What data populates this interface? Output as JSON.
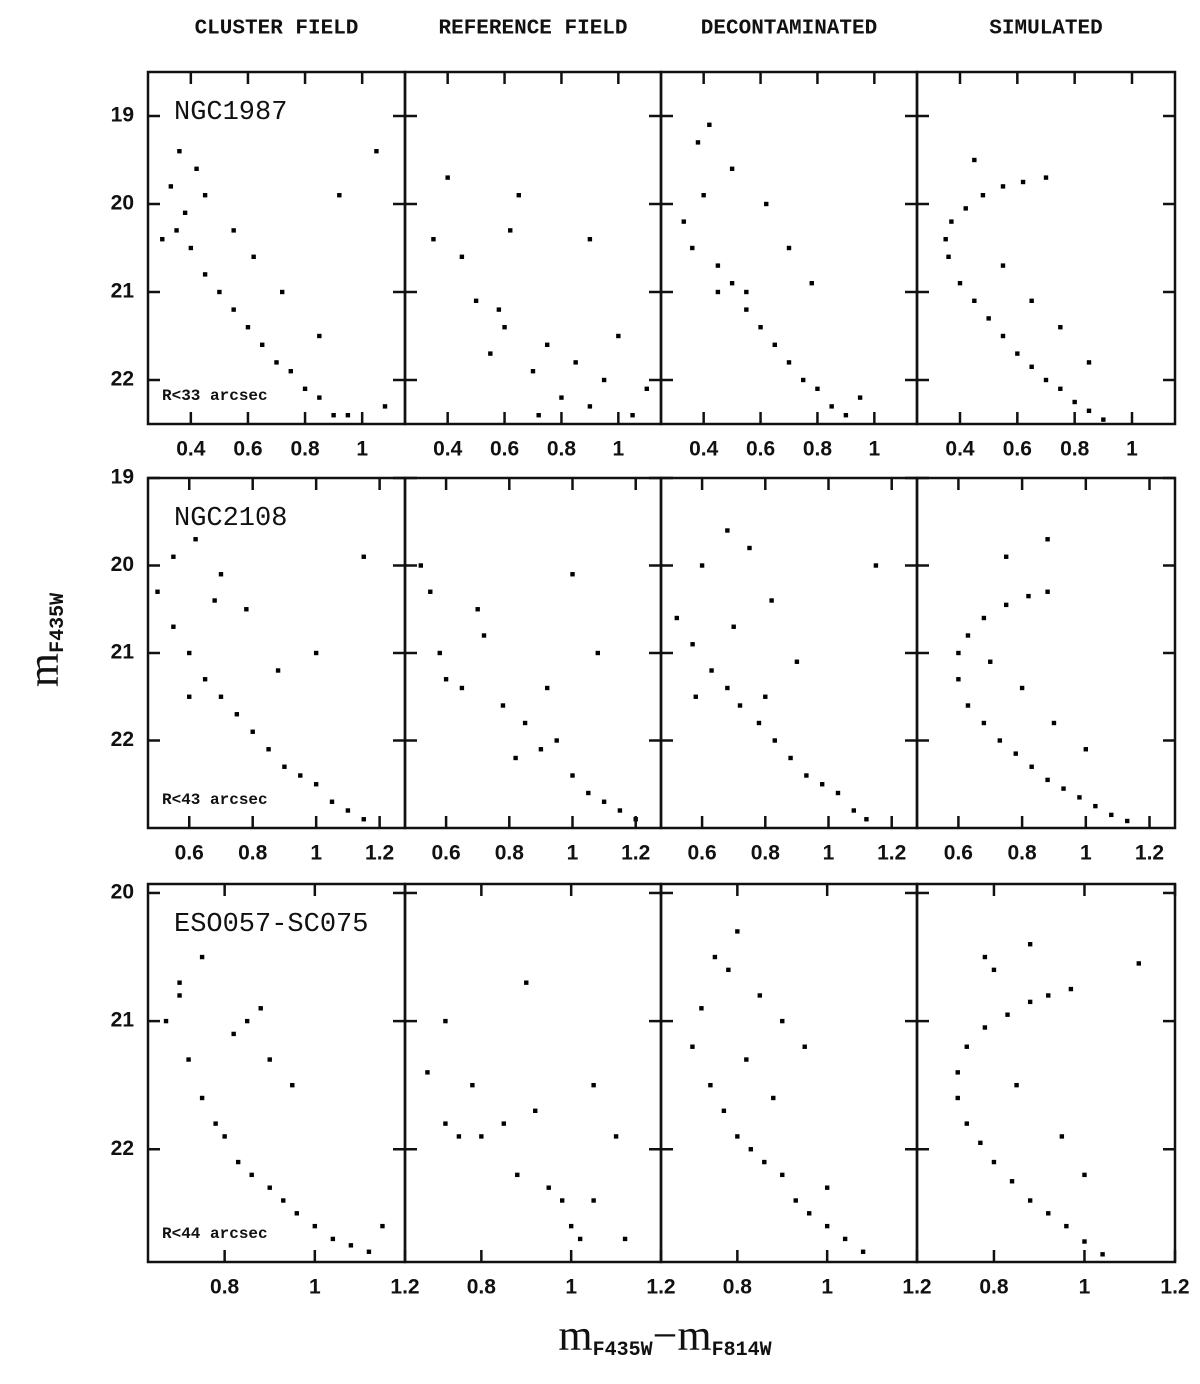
{
  "column_titles": [
    "CLUSTER FIELD",
    "REFERENCE FIELD",
    "DECONTAMINATED",
    "SIMULATED"
  ],
  "ylabel": [
    "m",
    "F435W"
  ],
  "xlabel": [
    "m",
    "F435W",
    "−m",
    "F814W"
  ],
  "chart_data": [
    {
      "type": "scatter",
      "name": "NGC1987",
      "radius": "R<33 arcsec",
      "ytick_labels": true,
      "color": "#000000",
      "xlim": [
        0.25,
        1.15
      ],
      "ylim": [
        22.5,
        18.5
      ],
      "xticks": [
        0.4,
        0.6,
        0.8,
        1
      ],
      "yticks": [
        19,
        20,
        21,
        22
      ],
      "x": [
        0.33,
        0.35,
        0.38,
        0.4,
        0.42,
        0.45,
        0.5,
        0.55,
        0.6,
        0.65,
        0.7,
        0.75,
        0.8,
        0.85,
        0.9,
        0.95,
        0.36,
        0.45,
        0.55,
        0.62,
        0.72,
        0.85,
        1.05,
        0.92,
        1.08,
        0.3
      ],
      "y": [
        19.8,
        20.3,
        20.1,
        20.5,
        19.6,
        20.8,
        21.0,
        21.2,
        21.4,
        21.6,
        21.8,
        21.9,
        22.1,
        22.2,
        22.4,
        22.4,
        19.4,
        19.9,
        20.3,
        20.6,
        21.0,
        21.5,
        19.4,
        19.9,
        22.3,
        20.4
      ]
    },
    {
      "type": "scatter",
      "ytick_labels": false,
      "color": "#000000",
      "xlim": [
        0.25,
        1.15
      ],
      "ylim": [
        22.5,
        18.5
      ],
      "xticks": [
        0.4,
        0.6,
        0.8,
        1
      ],
      "yticks": [
        19,
        20,
        21,
        22
      ],
      "x": [
        0.35,
        0.45,
        0.5,
        0.55,
        0.6,
        0.65,
        0.7,
        0.75,
        0.8,
        0.85,
        0.9,
        0.95,
        1.0,
        1.05,
        0.62,
        0.4,
        0.9,
        0.72,
        1.1,
        0.58
      ],
      "y": [
        20.4,
        20.6,
        21.1,
        21.7,
        21.4,
        19.9,
        21.9,
        21.6,
        22.2,
        21.8,
        22.3,
        22.0,
        21.5,
        22.4,
        20.3,
        19.7,
        20.4,
        22.4,
        22.1,
        21.2
      ]
    },
    {
      "type": "scatter",
      "ytick_labels": false,
      "color": "#000000",
      "xlim": [
        0.25,
        1.15
      ],
      "ylim": [
        22.5,
        18.5
      ],
      "xticks": [
        0.4,
        0.6,
        0.8,
        1
      ],
      "yticks": [
        19,
        20,
        21,
        22
      ],
      "x": [
        0.33,
        0.36,
        0.4,
        0.38,
        0.45,
        0.5,
        0.55,
        0.6,
        0.65,
        0.7,
        0.75,
        0.8,
        0.85,
        0.9,
        0.42,
        0.5,
        0.62,
        0.7,
        0.78,
        0.95,
        0.55,
        0.45
      ],
      "y": [
        20.2,
        20.5,
        19.9,
        19.3,
        20.7,
        20.9,
        21.2,
        21.4,
        21.6,
        21.8,
        22.0,
        22.1,
        22.3,
        22.4,
        19.1,
        19.6,
        20.0,
        20.5,
        20.9,
        22.2,
        21.0,
        21.0
      ]
    },
    {
      "type": "scatter",
      "ytick_labels": false,
      "color": "#000000",
      "xlim": [
        0.25,
        1.15
      ],
      "ylim": [
        22.5,
        18.5
      ],
      "xticks": [
        0.4,
        0.6,
        0.8,
        1
      ],
      "yticks": [
        19,
        20,
        21,
        22
      ],
      "x": [
        0.7,
        0.62,
        0.55,
        0.48,
        0.42,
        0.37,
        0.35,
        0.36,
        0.4,
        0.45,
        0.5,
        0.55,
        0.6,
        0.65,
        0.7,
        0.75,
        0.8,
        0.85,
        0.9,
        0.55,
        0.65,
        0.75,
        0.85,
        0.45
      ],
      "y": [
        19.7,
        19.75,
        19.8,
        19.9,
        20.05,
        20.2,
        20.4,
        20.6,
        20.9,
        21.1,
        21.3,
        21.5,
        21.7,
        21.85,
        22.0,
        22.1,
        22.25,
        22.35,
        22.45,
        20.7,
        21.1,
        21.4,
        21.8,
        19.5
      ]
    },
    {
      "type": "scatter",
      "name": "NGC2108",
      "radius": "R<43 arcsec",
      "ytick_labels": true,
      "color": "#000000",
      "xlim": [
        0.47,
        1.28
      ],
      "ylim": [
        23,
        19
      ],
      "xticks": [
        0.6,
        0.8,
        1,
        1.2
      ],
      "yticks": [
        19,
        20,
        21,
        22
      ],
      "x": [
        0.5,
        0.55,
        0.6,
        0.65,
        0.7,
        0.75,
        0.8,
        0.85,
        0.9,
        0.95,
        1.0,
        1.05,
        1.1,
        1.15,
        0.55,
        0.62,
        0.7,
        0.78,
        0.88,
        1.0,
        1.15,
        0.6,
        0.68
      ],
      "y": [
        20.3,
        20.7,
        21.0,
        21.3,
        21.5,
        21.7,
        21.9,
        22.1,
        22.3,
        22.4,
        22.5,
        22.7,
        22.8,
        22.9,
        19.9,
        19.7,
        20.1,
        20.5,
        21.2,
        21.0,
        19.9,
        21.5,
        20.4
      ]
    },
    {
      "type": "scatter",
      "ytick_labels": false,
      "color": "#000000",
      "xlim": [
        0.47,
        1.28
      ],
      "ylim": [
        23,
        19
      ],
      "xticks": [
        0.6,
        0.8,
        1,
        1.2
      ],
      "yticks": [
        19,
        20,
        21,
        22
      ],
      "x": [
        0.52,
        0.6,
        0.65,
        0.72,
        0.78,
        0.85,
        0.9,
        0.95,
        1.0,
        1.05,
        1.1,
        1.15,
        1.2,
        0.58,
        0.7,
        0.82,
        0.92,
        1.08,
        0.55,
        1.0
      ],
      "y": [
        20.0,
        21.3,
        21.4,
        20.8,
        21.6,
        21.8,
        22.1,
        22.0,
        22.4,
        22.6,
        22.7,
        22.8,
        22.9,
        21.0,
        20.5,
        22.2,
        21.4,
        21.0,
        20.3,
        20.1
      ]
    },
    {
      "type": "scatter",
      "ytick_labels": false,
      "color": "#000000",
      "xlim": [
        0.47,
        1.28
      ],
      "ylim": [
        23,
        19
      ],
      "xticks": [
        0.6,
        0.8,
        1,
        1.2
      ],
      "yticks": [
        19,
        20,
        21,
        22
      ],
      "x": [
        0.52,
        0.57,
        0.63,
        0.68,
        0.72,
        0.78,
        0.83,
        0.88,
        0.93,
        0.98,
        1.03,
        1.08,
        1.12,
        0.6,
        0.68,
        0.75,
        0.82,
        0.9,
        0.7,
        0.58,
        1.15,
        0.8
      ],
      "y": [
        20.6,
        20.9,
        21.2,
        21.4,
        21.6,
        21.8,
        22.0,
        22.2,
        22.4,
        22.5,
        22.6,
        22.8,
        22.9,
        20.0,
        19.6,
        19.8,
        20.4,
        21.1,
        20.7,
        21.5,
        20.0,
        21.5
      ]
    },
    {
      "type": "scatter",
      "ytick_labels": false,
      "color": "#000000",
      "xlim": [
        0.47,
        1.28
      ],
      "ylim": [
        23,
        19
      ],
      "xticks": [
        0.6,
        0.8,
        1,
        1.2
      ],
      "yticks": [
        19,
        20,
        21,
        22
      ],
      "x": [
        0.88,
        0.82,
        0.75,
        0.68,
        0.63,
        0.6,
        0.6,
        0.63,
        0.68,
        0.73,
        0.78,
        0.83,
        0.88,
        0.93,
        0.98,
        1.03,
        1.08,
        1.13,
        0.7,
        0.8,
        0.9,
        1.0,
        0.75,
        0.88
      ],
      "y": [
        20.3,
        20.35,
        20.45,
        20.6,
        20.8,
        21.0,
        21.3,
        21.6,
        21.8,
        22.0,
        22.15,
        22.3,
        22.45,
        22.55,
        22.65,
        22.75,
        22.85,
        22.92,
        21.1,
        21.4,
        21.8,
        22.1,
        19.9,
        19.7
      ]
    },
    {
      "type": "scatter",
      "name": "ESO057-SC075",
      "radius": "R<44 arcsec",
      "ytick_labels": true,
      "color": "#000000",
      "xlim": [
        0.63,
        1.2
      ],
      "ylim": [
        22.88,
        19.93
      ],
      "xticks": [
        0.8,
        1,
        1.2
      ],
      "yticks": [
        20,
        21,
        22
      ],
      "x": [
        0.67,
        0.7,
        0.72,
        0.75,
        0.78,
        0.8,
        0.83,
        0.86,
        0.9,
        0.93,
        0.96,
        1.0,
        1.04,
        1.08,
        1.12,
        0.75,
        0.82,
        0.88,
        0.95,
        0.9,
        0.7,
        1.15,
        0.85
      ],
      "y": [
        21.0,
        20.7,
        21.3,
        21.6,
        21.8,
        21.9,
        22.1,
        22.2,
        22.3,
        22.4,
        22.5,
        22.6,
        22.7,
        22.75,
        22.8,
        20.5,
        21.1,
        20.9,
        21.5,
        21.3,
        20.8,
        22.6,
        21.0
      ]
    },
    {
      "type": "scatter",
      "ytick_labels": false,
      "color": "#000000",
      "xlim": [
        0.63,
        1.2
      ],
      "ylim": [
        22.88,
        19.93
      ],
      "xticks": [
        0.8,
        1,
        1.2
      ],
      "yticks": [
        20,
        21,
        22
      ],
      "x": [
        0.68,
        0.72,
        0.75,
        0.8,
        0.85,
        0.88,
        0.92,
        0.95,
        0.98,
        1.0,
        1.02,
        1.05,
        1.1,
        0.9,
        0.78,
        0.72,
        1.12,
        1.05
      ],
      "y": [
        21.4,
        21.0,
        21.9,
        21.9,
        21.8,
        22.2,
        21.7,
        22.3,
        22.4,
        22.6,
        22.7,
        22.4,
        21.9,
        20.7,
        21.5,
        21.8,
        22.7,
        21.5
      ]
    },
    {
      "type": "scatter",
      "ytick_labels": false,
      "color": "#000000",
      "xlim": [
        0.63,
        1.2
      ],
      "ylim": [
        22.88,
        19.93
      ],
      "xticks": [
        0.8,
        1,
        1.2
      ],
      "yticks": [
        20,
        21,
        22
      ],
      "x": [
        0.7,
        0.74,
        0.77,
        0.8,
        0.83,
        0.86,
        0.9,
        0.93,
        0.96,
        1.0,
        1.04,
        1.08,
        0.75,
        0.8,
        0.85,
        0.9,
        0.95,
        0.82,
        0.88,
        0.72,
        1.0,
        0.78
      ],
      "y": [
        21.2,
        21.5,
        21.7,
        21.9,
        22.0,
        22.1,
        22.2,
        22.4,
        22.5,
        22.6,
        22.7,
        22.8,
        20.5,
        20.3,
        20.8,
        21.0,
        21.2,
        21.3,
        21.6,
        20.9,
        22.3,
        20.6
      ]
    },
    {
      "type": "scatter",
      "ytick_labels": false,
      "color": "#000000",
      "xlim": [
        0.63,
        1.2
      ],
      "ylim": [
        22.88,
        19.93
      ],
      "xticks": [
        0.8,
        1,
        1.2
      ],
      "yticks": [
        20,
        21,
        22
      ],
      "x": [
        0.97,
        0.92,
        0.88,
        0.83,
        0.78,
        0.74,
        0.72,
        0.72,
        0.74,
        0.77,
        0.8,
        0.84,
        0.88,
        0.92,
        0.96,
        1.0,
        1.04,
        0.85,
        0.95,
        1.0,
        0.78,
        0.88,
        1.12,
        0.8
      ],
      "y": [
        20.75,
        20.8,
        20.85,
        20.95,
        21.05,
        21.2,
        21.4,
        21.6,
        21.8,
        21.95,
        22.1,
        22.25,
        22.4,
        22.5,
        22.6,
        22.72,
        22.82,
        21.5,
        21.9,
        22.2,
        20.5,
        20.4,
        20.55,
        20.6
      ]
    }
  ]
}
